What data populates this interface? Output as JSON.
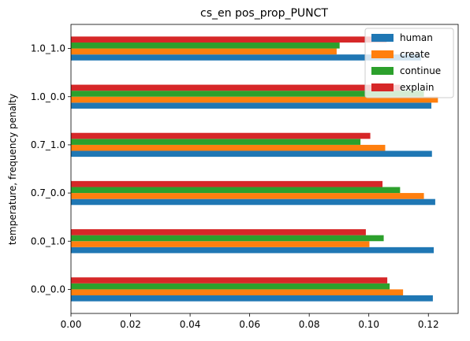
{
  "chart_data": {
    "type": "bar",
    "orientation": "horizontal",
    "title": "cs_en pos_prop_PUNCT",
    "xlabel": "",
    "ylabel": "temperature, frequency penalty",
    "categories": [
      "0.0_0.0",
      "0.0_1.0",
      "0.7_0.0",
      "0.7_1.0",
      "1.0_0.0",
      "1.0_1.0"
    ],
    "series": [
      {
        "name": "human",
        "color": "#1f77b4",
        "values": [
          0.1215,
          0.1218,
          0.1223,
          0.1212,
          0.121,
          0.1175
        ]
      },
      {
        "name": "create",
        "color": "#ff7f0e",
        "values": [
          0.1115,
          0.1002,
          0.1185,
          0.1055,
          0.1232,
          0.0892
        ]
      },
      {
        "name": "continue",
        "color": "#2ca02c",
        "values": [
          0.107,
          0.105,
          0.1105,
          0.0972,
          0.1185,
          0.0902
        ]
      },
      {
        "name": "explain",
        "color": "#d62728",
        "values": [
          0.1062,
          0.099,
          0.1046,
          0.1005,
          0.1105,
          0.106
        ]
      }
    ],
    "xlim": [
      0,
      0.13
    ],
    "xticks": [
      "0.00",
      "0.02",
      "0.04",
      "0.06",
      "0.08",
      "0.10",
      "0.12"
    ],
    "grid": false,
    "legend_position": "top-right"
  }
}
